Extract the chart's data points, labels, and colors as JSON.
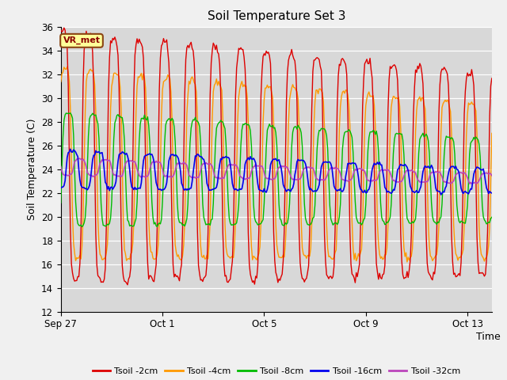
{
  "title": "Soil Temperature Set 3",
  "ylabel": "Soil Temperature (C)",
  "xlabel": "Time",
  "ylim": [
    12,
    36
  ],
  "yticks": [
    12,
    14,
    16,
    18,
    20,
    22,
    24,
    26,
    28,
    30,
    32,
    34,
    36
  ],
  "bg_color": "#d8d8d8",
  "fig_color": "#f0f0f0",
  "annotation": "VR_met",
  "series": [
    {
      "label": "Tsoil -2cm",
      "color": "#dd0000"
    },
    {
      "label": "Tsoil -4cm",
      "color": "#ff9900"
    },
    {
      "label": "Tsoil -8cm",
      "color": "#00bb00"
    },
    {
      "label": "Tsoil -16cm",
      "color": "#0000ee"
    },
    {
      "label": "Tsoil -32cm",
      "color": "#bb44bb"
    }
  ],
  "xtick_labels": [
    "Sep 27",
    "Oct 1",
    "Oct 5",
    "Oct 9",
    "Oct 13"
  ],
  "xtick_hour_positions": [
    0,
    96,
    192,
    288,
    384
  ]
}
